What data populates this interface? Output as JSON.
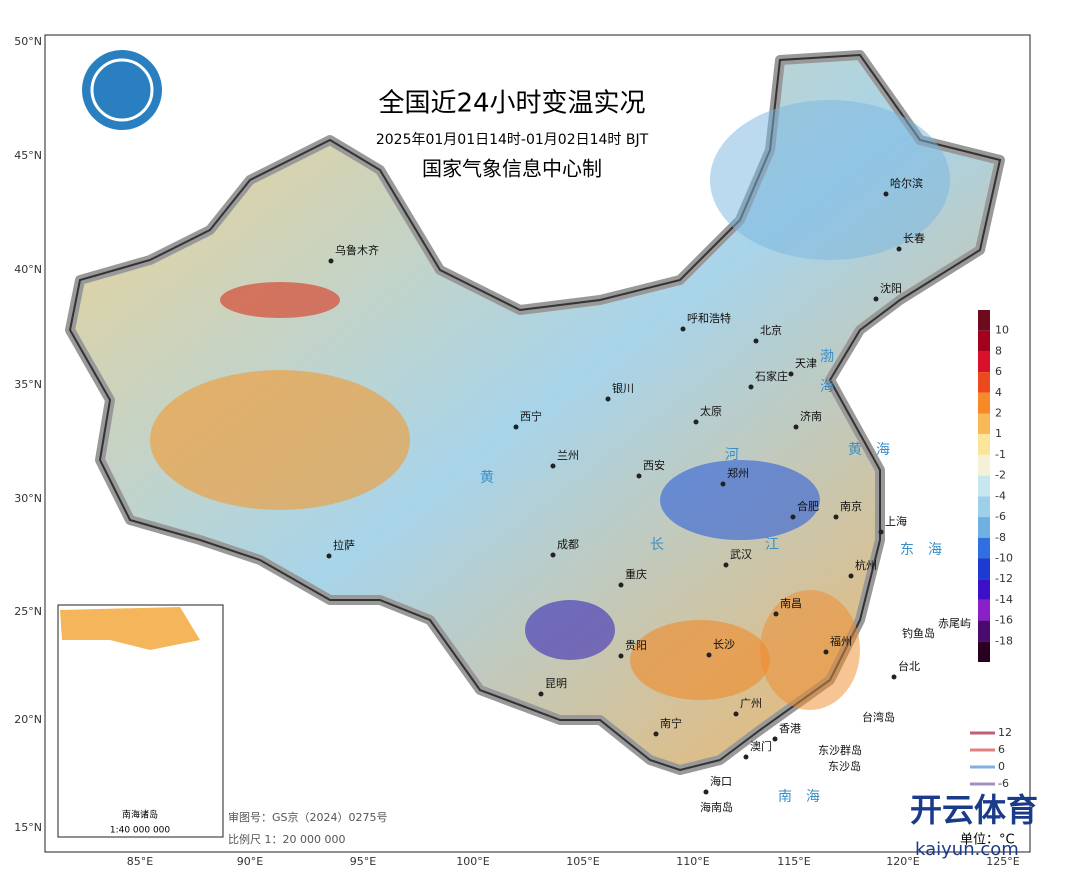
{
  "header": {
    "title": "全国近24小时变温实况",
    "subtitle": "2025年01月01日14时-01月02日14时 BJT",
    "credit": "国家气象信息中心制"
  },
  "lat_labels": [
    "50°N",
    "45°N",
    "40°N",
    "35°N",
    "30°N",
    "25°N",
    "20°N",
    "15°N"
  ],
  "lon_labels": [
    "85°E",
    "90°E",
    "95°E",
    "100°E",
    "105°E",
    "110°E",
    "115°E",
    "120°E",
    "125°E"
  ],
  "cities": [
    "乌鲁木齐",
    "哈尔滨",
    "长春",
    "沈阳",
    "呼和浩特",
    "北京",
    "天津",
    "石家庄",
    "银川",
    "太原",
    "济南",
    "西宁",
    "兰州",
    "西安",
    "郑州",
    "合肥",
    "南京",
    "上海",
    "拉萨",
    "成都",
    "武汉",
    "杭州",
    "重庆",
    "南昌",
    "长沙",
    "贵阳",
    "福州",
    "昆明",
    "台北",
    "南宁",
    "广州",
    "香港",
    "澳门",
    "海口"
  ],
  "places": [
    "海南岛",
    "台湾岛",
    "钓鱼岛",
    "赤尾屿",
    "东沙群岛",
    "东沙岛",
    "渤",
    "海",
    "黄　海",
    "东　海",
    "南　海",
    "黄",
    "河",
    "长",
    "江"
  ],
  "legend": {
    "labels": [
      10,
      8,
      6,
      4,
      2,
      1,
      -1,
      -2,
      -4,
      -6,
      -8,
      -10,
      -12,
      -14,
      -16,
      -18
    ],
    "colors": [
      "#6e0a1e",
      "#a3001e",
      "#d8102c",
      "#ec4a1e",
      "#f58a26",
      "#f9b957",
      "#fbe59b",
      "#f4f1d6",
      "#c8e6f0",
      "#9fd0ea",
      "#6fb0e0",
      "#2f6fe0",
      "#1e3ad0",
      "#3a10c8",
      "#8a20c8",
      "#4a0a70",
      "#2a0020"
    ]
  },
  "contours": {
    "labels": [
      12,
      6,
      0,
      -6
    ],
    "colors": [
      "#c06070",
      "#e08080",
      "#80b0e0",
      "#a090c0"
    ]
  },
  "inset": {
    "title": "南海诸岛",
    "scale": "1:40 000 000"
  },
  "footer": {
    "review": "审图号：GS京（2024）0275号",
    "scale": "比例尺 1：20 000 000",
    "unit": "单位：°C"
  },
  "watermark": {
    "brand": "开云体育",
    "url": "kaiyun.com"
  }
}
